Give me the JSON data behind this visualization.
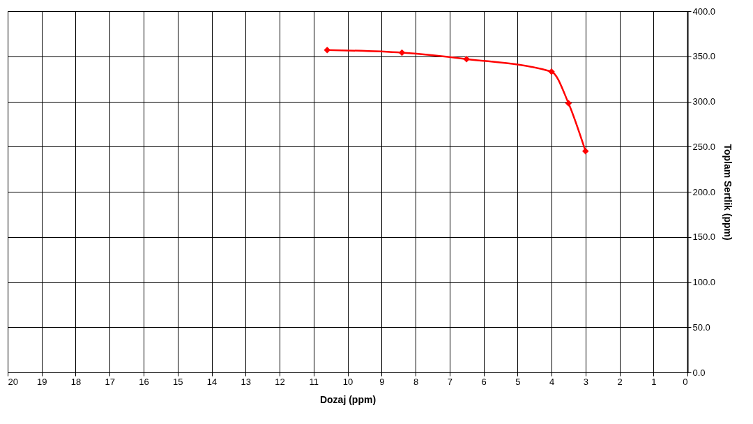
{
  "chart_data": {
    "type": "line",
    "xlabel": "Dozaj (ppm)",
    "ylabel": "Toplam Sertlik (ppm)",
    "x": [
      10.6,
      8.4,
      6.5,
      4.0,
      3.5,
      3.0
    ],
    "series": [
      {
        "color": "#ff0000",
        "values": [
          357,
          354,
          347,
          333,
          298,
          245
        ]
      }
    ],
    "xlim": [
      20,
      0
    ],
    "xticks": [
      20,
      19,
      18,
      17,
      16,
      15,
      14,
      13,
      12,
      11,
      10,
      9,
      8,
      7,
      6,
      5,
      4,
      3,
      2,
      1,
      0
    ],
    "ylim": [
      0,
      400
    ],
    "yticks": [
      {
        "value": 0,
        "label": "0.0"
      },
      {
        "value": 50,
        "label": "50.0"
      },
      {
        "value": 100,
        "label": "100.0"
      },
      {
        "value": 150,
        "label": "150.0"
      },
      {
        "value": 200,
        "label": "200.0"
      },
      {
        "value": 250,
        "label": "250.0"
      },
      {
        "value": 300,
        "label": "300.0"
      },
      {
        "value": 350,
        "label": "350.0"
      },
      {
        "value": 400,
        "label": "400.0"
      }
    ],
    "grid": true,
    "marker": "diamond",
    "line_style": "solid"
  }
}
